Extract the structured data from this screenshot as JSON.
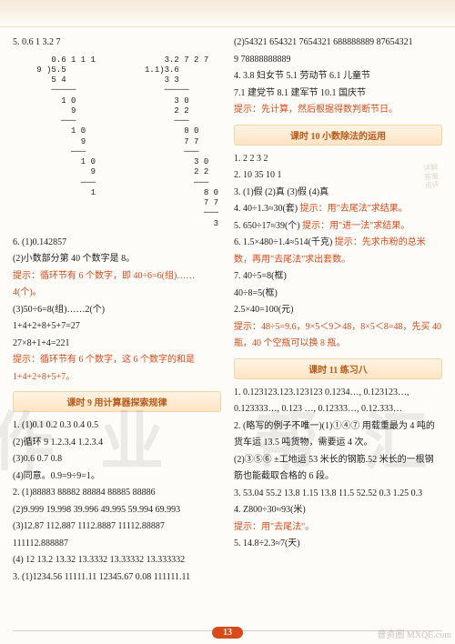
{
  "left": {
    "p5_header": "5.       0.6 1                    3.2 7",
    "div": "      0.6 1 1 1              3.2 7 2 7\n   9 )5.5                1.1)3.6\n      5 4                    3 3\n      ─────                  ─────\n        1 0                    3 0\n          9                    2 2\n        ───                    ───\n          1 0                    8 0\n            9                    7 7\n          ───                    ───\n            1 0                    3 0\n              9                    2 2\n            ───                    ───\n              1                      8 0\n                                     7 7\n                                     ───\n                                       3",
    "p6_1": "6. (1)0.142857",
    "p6_2": "(2)小数部分第 40 个数字是 8。",
    "p6_2h": "提示：循环节有 6 个数字，即 40÷6=6(组)……4(个)。",
    "p6_3": "(3)50÷6=8(组)……2(个)",
    "p6_3b": "1+4+2+8+5+7=27",
    "p6_3c": "27×8+1+4=221",
    "p6_3h": "提示：循环节有 6 个数字，这 6 个数字的和是 1+4+2+8+5+7。",
    "sec9": "课时 9  用计算器探索规律",
    "s9_1": "1. (1)0.1  0.2  0.3  0.4  0.5",
    "s9_2": "(2)循环  9  1.2.3.4  1.2.3.4",
    "s9_3": "(3)0.6  0.7  0.8",
    "s9_4": "(4)同意。0.9=9÷9=1。",
    "s9_2a": "2. (1)88883  88882  88884  88885  88886",
    "s9_2b": "(2)9.999  19.998  39.996  49.995  59.994  69.993",
    "s9_2c": "(3)12.87  112.887  1112.8887  11112.88887  111112.888887",
    "s9_2d": "(4) 12  13.2  13.32  13.3332  13.33332  13.333332",
    "s9_3a": "3. (1)1234.56  11111.11  12345.67  0.08  111111.11",
    "sec10": "课时 10  小数除法的运用"
  },
  "right": {
    "top1": "(2)54321  654321  7654321  688888889  87654321",
    "top2": "9  78888888889",
    "p4": "4. 3.8  妇女节  5.1  劳动节  6.1  儿童节",
    "p4b": "7.1  建党节  8.1  建军节  10.1  国庆节",
    "p4h": "提示：先计算，然后根据得数判断节日。",
    "s10_1": "1. 2  2  3  2",
    "s10_2": "2. 10  35  10  1",
    "s10_3": "3. (1)假  (2)真  (3)假  (4)真",
    "s10_4": "4. 40÷1.3≈30(套)  ",
    "s10_4h": "提示：用\"去尾法\"求结果。",
    "s10_5": "5. 650÷17≈39(个)  ",
    "s10_5h": "提示：用\"进一法\"求结果。",
    "s10_6": "6. 1.5×480÷1.4≈514(千克)  ",
    "s10_6h": "提示：先求市粉的总米数，再用\"去尾法\"求出套数。",
    "s10_7": "7. 40÷5=8(框)",
    "s10_7b": "40÷8=5(框)",
    "s10_7c": "2.5×40=100(元)",
    "s10_7h": "提示：48÷5=9.6，9×5＜9＞48，8×5＜8=48，先买 40 瓶，40 个空瓶可以换 8 瓶。",
    "sec11": "课时 11  练习八",
    "s11_1": "1. 0.123123.123.123123  0.1234…, 0.123123…, 0.123333…, 0.123 …, 0.12333…, 0.12.333…",
    "s11_2": "2. (略写的例子不唯一)(1)①④⑦  用载重最为 4 吨的货车运 13.5 吨货物，需要运 4 次。",
    "s11_2b": "(2)③⑤⑥  ±工地运 53 米长的钢筋.52 米长的一根钢筋也能截取合格的 6 段。",
    "s11_3": "3. 53.04  55.2  13.8  1.15  13.8  11.5  52.52  0.3  1.25  0.3",
    "s11_4": "4. Z800÷30≈93(米)",
    "s11_4h": "提示：用\"去尾法\"。",
    "s11_5": "5. 14.8÷2.3≈7(天)"
  },
  "pageNumber": "13",
  "corner": "普资圈\nMXQE.com"
}
